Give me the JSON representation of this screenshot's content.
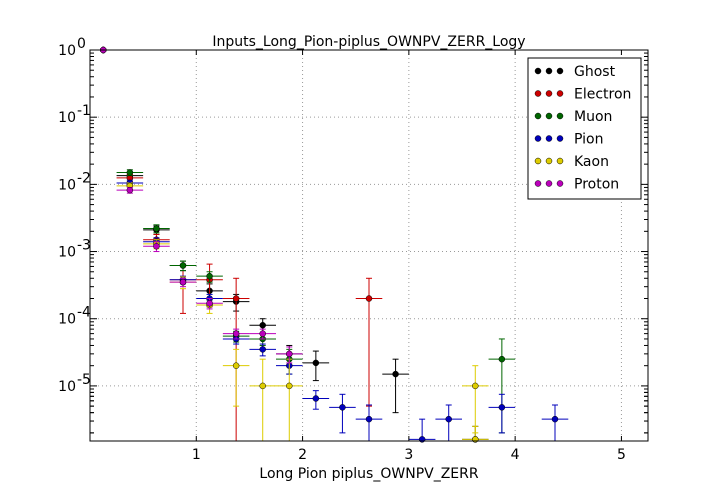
{
  "chart_data": {
    "type": "scatter",
    "title": "Inputs_Long_Pion-piplus_OWNPV_ZERR_Logy",
    "xlabel": "Long Pion piplus_OWNPV_ZERR",
    "ylabel": "",
    "xlim": [
      0,
      5.25
    ],
    "ylim_log10": [
      -5.82,
      0
    ],
    "yscale": "log",
    "grid": true,
    "legend_position": "top-right",
    "x_ticks": [
      {
        "v": 1,
        "label": "1"
      },
      {
        "v": 2,
        "label": "2"
      },
      {
        "v": 3,
        "label": "3"
      },
      {
        "v": 4,
        "label": "4"
      },
      {
        "v": 5,
        "label": "5"
      }
    ],
    "y_ticks": [
      {
        "exp": 0,
        "label": "10",
        "sup": "0"
      },
      {
        "exp": -1,
        "label": "10",
        "sup": "-1"
      },
      {
        "exp": -2,
        "label": "10",
        "sup": "-2"
      },
      {
        "exp": -3,
        "label": "10",
        "sup": "-3"
      },
      {
        "exp": -4,
        "label": "10",
        "sup": "-4"
      },
      {
        "exp": -5,
        "label": "10",
        "sup": "-5"
      }
    ],
    "xerr": 0.125,
    "series": [
      {
        "name": "Ghost",
        "color": "#000000",
        "points": [
          {
            "x": 0.125,
            "y": 1.0,
            "lo": 1.0,
            "hi": 1.0
          },
          {
            "x": 0.375,
            "y": 0.0135,
            "lo": 0.012,
            "hi": 0.015
          },
          {
            "x": 0.625,
            "y": 0.0021,
            "lo": 0.0018,
            "hi": 0.0024
          },
          {
            "x": 0.875,
            "y": 0.00062,
            "lo": 0.00052,
            "hi": 0.00072
          },
          {
            "x": 1.125,
            "y": 0.00026,
            "lo": 0.00019,
            "hi": 0.00033
          },
          {
            "x": 1.375,
            "y": 0.00018,
            "lo": 0.00013,
            "hi": 0.00023
          },
          {
            "x": 1.625,
            "y": 8e-05,
            "lo": 6e-05,
            "hi": 0.0001
          },
          {
            "x": 1.875,
            "y": 3e-05,
            "lo": 2e-05,
            "hi": 4e-05
          },
          {
            "x": 2.125,
            "y": 2.2e-05,
            "lo": 1.2e-05,
            "hi": 3.3e-05
          },
          {
            "x": 2.875,
            "y": 1.5e-05,
            "lo": 4e-06,
            "hi": 2.5e-05
          },
          {
            "x": 3.625,
            "y": 1.6e-06,
            "lo": 1e-06,
            "hi": 2.5e-06
          }
        ]
      },
      {
        "name": "Electron",
        "color": "#cc0000",
        "points": [
          {
            "x": 0.125,
            "y": 1.0,
            "lo": 1.0,
            "hi": 1.0
          },
          {
            "x": 0.375,
            "y": 0.0125,
            "lo": 0.011,
            "hi": 0.014
          },
          {
            "x": 0.625,
            "y": 0.0015,
            "lo": 0.0012,
            "hi": 0.0018
          },
          {
            "x": 0.875,
            "y": 0.00038,
            "lo": 0.00012,
            "hi": 0.0006
          },
          {
            "x": 1.125,
            "y": 0.00038,
            "lo": 0.00015,
            "hi": 0.00065
          },
          {
            "x": 1.375,
            "y": 0.0002,
            "lo": 1e-06,
            "hi": 0.0004
          },
          {
            "x": 2.625,
            "y": 0.0002,
            "lo": 5e-06,
            "hi": 0.0004
          }
        ]
      },
      {
        "name": "Muon",
        "color": "#006600",
        "points": [
          {
            "x": 0.125,
            "y": 1.0,
            "lo": 1.0,
            "hi": 1.0
          },
          {
            "x": 0.375,
            "y": 0.015,
            "lo": 0.0135,
            "hi": 0.0165
          },
          {
            "x": 0.625,
            "y": 0.0022,
            "lo": 0.0019,
            "hi": 0.0025
          },
          {
            "x": 0.875,
            "y": 0.00062,
            "lo": 0.00052,
            "hi": 0.00072
          },
          {
            "x": 1.125,
            "y": 0.00043,
            "lo": 0.00035,
            "hi": 0.0005
          },
          {
            "x": 1.375,
            "y": 5.5e-05,
            "lo": 4.5e-05,
            "hi": 6.5e-05
          },
          {
            "x": 1.625,
            "y": 5e-05,
            "lo": 4e-05,
            "hi": 6e-05
          },
          {
            "x": 1.875,
            "y": 2.5e-05,
            "lo": 1.5e-05,
            "hi": 3.5e-05
          },
          {
            "x": 3.875,
            "y": 2.5e-05,
            "lo": 2e-06,
            "hi": 5e-05
          }
        ]
      },
      {
        "name": "Pion",
        "color": "#0000bb",
        "points": [
          {
            "x": 0.125,
            "y": 1.0,
            "lo": 1.0,
            "hi": 1.0
          },
          {
            "x": 0.375,
            "y": 0.0105,
            "lo": 0.0095,
            "hi": 0.0115
          },
          {
            "x": 0.625,
            "y": 0.0014,
            "lo": 0.0012,
            "hi": 0.0016
          },
          {
            "x": 0.875,
            "y": 0.00038,
            "lo": 0.00033,
            "hi": 0.00043
          },
          {
            "x": 1.125,
            "y": 0.0002,
            "lo": 0.00017,
            "hi": 0.00023
          },
          {
            "x": 1.375,
            "y": 5e-05,
            "lo": 4.2e-05,
            "hi": 5.8e-05
          },
          {
            "x": 1.625,
            "y": 3.5e-05,
            "lo": 2.8e-05,
            "hi": 4.2e-05
          },
          {
            "x": 1.875,
            "y": 2e-05,
            "lo": 1.5e-05,
            "hi": 2.5e-05
          },
          {
            "x": 2.125,
            "y": 6.5e-06,
            "lo": 4.5e-06,
            "hi": 8.5e-06
          },
          {
            "x": 2.375,
            "y": 4.8e-06,
            "lo": 2e-06,
            "hi": 7.5e-06
          },
          {
            "x": 2.625,
            "y": 3.2e-06,
            "lo": 1.3e-06,
            "hi": 5.2e-06
          },
          {
            "x": 3.125,
            "y": 1.6e-06,
            "lo": 1e-06,
            "hi": 3.2e-06
          },
          {
            "x": 3.375,
            "y": 3.2e-06,
            "lo": 1.3e-06,
            "hi": 5.2e-06
          },
          {
            "x": 3.875,
            "y": 4.8e-06,
            "lo": 2e-06,
            "hi": 7.5e-06
          },
          {
            "x": 4.375,
            "y": 3.2e-06,
            "lo": 1.3e-06,
            "hi": 5.2e-06
          }
        ]
      },
      {
        "name": "Kaon",
        "color": "#ddcc00",
        "points": [
          {
            "x": 0.125,
            "y": 1.0,
            "lo": 1.0,
            "hi": 1.0
          },
          {
            "x": 0.375,
            "y": 0.0095,
            "lo": 0.0085,
            "hi": 0.0105
          },
          {
            "x": 0.625,
            "y": 0.0013,
            "lo": 0.0011,
            "hi": 0.0015
          },
          {
            "x": 0.875,
            "y": 0.00035,
            "lo": 0.00028,
            "hi": 0.00042
          },
          {
            "x": 1.125,
            "y": 0.00016,
            "lo": 0.00012,
            "hi": 0.0002
          },
          {
            "x": 1.375,
            "y": 2e-05,
            "lo": 5e-06,
            "hi": 3.5e-05
          },
          {
            "x": 1.625,
            "y": 1e-05,
            "lo": 1e-06,
            "hi": 2.5e-05
          },
          {
            "x": 1.875,
            "y": 1e-05,
            "lo": 1e-06,
            "hi": 2.5e-05
          },
          {
            "x": 3.625,
            "y": 1e-05,
            "lo": 2e-06,
            "hi": 2e-05
          },
          {
            "x": 3.625,
            "y": 1.6e-06,
            "lo": 1e-06,
            "hi": 2.5e-06
          }
        ]
      },
      {
        "name": "Proton",
        "color": "#bb00bb",
        "points": [
          {
            "x": 0.125,
            "y": 1.0,
            "lo": 1.0,
            "hi": 1.0
          },
          {
            "x": 0.375,
            "y": 0.0082,
            "lo": 0.0074,
            "hi": 0.009
          },
          {
            "x": 0.625,
            "y": 0.0012,
            "lo": 0.001,
            "hi": 0.0014
          },
          {
            "x": 0.875,
            "y": 0.00035,
            "lo": 0.0003,
            "hi": 0.0004
          },
          {
            "x": 1.125,
            "y": 0.00017,
            "lo": 0.00014,
            "hi": 0.0002
          },
          {
            "x": 1.375,
            "y": 6e-05,
            "lo": 5e-05,
            "hi": 7e-05
          },
          {
            "x": 1.625,
            "y": 6e-05,
            "lo": 5e-05,
            "hi": 7e-05
          },
          {
            "x": 1.875,
            "y": 3e-05,
            "lo": 2.2e-05,
            "hi": 3.8e-05
          }
        ]
      }
    ]
  }
}
